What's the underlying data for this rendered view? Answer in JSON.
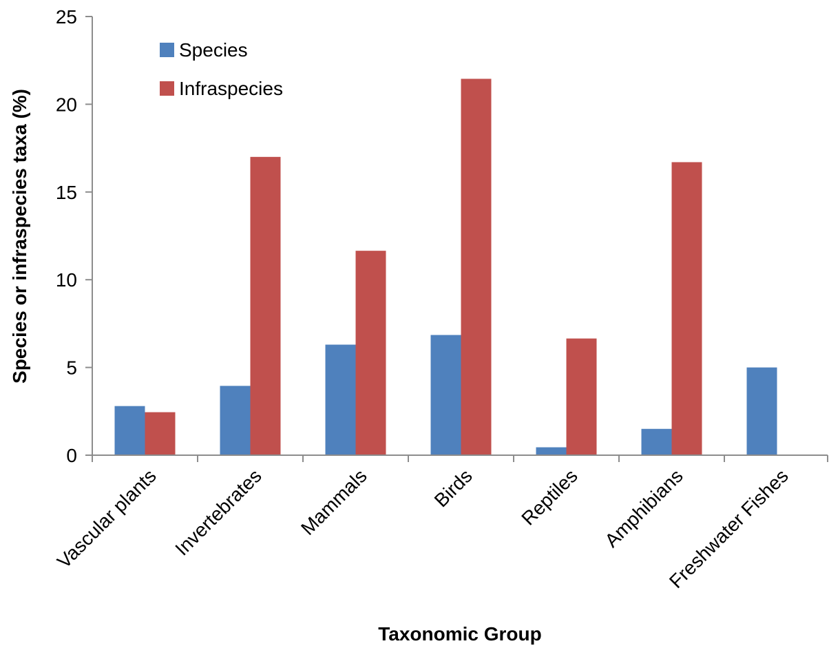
{
  "chart_data": {
    "type": "bar",
    "title": "",
    "xlabel": "Taxonomic Group",
    "ylabel": "Species or infraspecies taxa (%)",
    "ylim": [
      0,
      25
    ],
    "yticks": [
      0,
      5,
      10,
      15,
      20,
      25
    ],
    "grid": false,
    "legend_position": "top-left",
    "categories": [
      "Vascular plants",
      "Invertebrates",
      "Mammals",
      "Birds",
      "Reptiles",
      "Amphibians",
      "Freshwater Fishes"
    ],
    "series": [
      {
        "name": "Species",
        "color": "#4F81BD",
        "values": [
          2.8,
          3.95,
          6.3,
          6.85,
          0.45,
          1.5,
          5.0
        ]
      },
      {
        "name": "Infraspecies",
        "color": "#C0504D",
        "values": [
          2.45,
          17.0,
          11.65,
          21.45,
          6.65,
          16.7,
          0
        ]
      }
    ]
  }
}
